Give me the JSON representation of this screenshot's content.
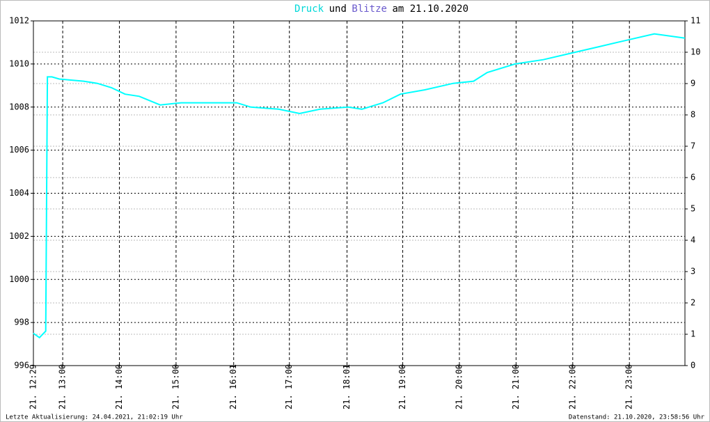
{
  "chart_data": {
    "type": "line",
    "title_parts": [
      {
        "text": "Druck",
        "color": "#00d8d8"
      },
      {
        "text": "und",
        "color": "#000000"
      },
      {
        "text": "Blitze",
        "color": "#6a5acd"
      },
      {
        "text": "am 21.10.2020",
        "color": "#000000"
      }
    ],
    "x": [
      12.48,
      12.59,
      12.7,
      12.73,
      12.81,
      12.94,
      13.37,
      13.61,
      13.86,
      14.1,
      14.35,
      14.72,
      15.09,
      15.58,
      16.07,
      16.32,
      16.81,
      17.18,
      17.54,
      18.04,
      18.28,
      18.65,
      18.96,
      19.39,
      19.89,
      20.25,
      20.49,
      20.98,
      21.48,
      21.97,
      22.46,
      22.95,
      23.44,
      23.98
    ],
    "series": [
      {
        "name": "Druck",
        "color": "#00ffff",
        "values": [
          997.5,
          997.3,
          997.6,
          1009.4,
          1009.4,
          1009.3,
          1009.2,
          1009.1,
          1008.9,
          1008.6,
          1008.5,
          1008.1,
          1008.2,
          1008.2,
          1008.2,
          1008.0,
          1007.9,
          1007.7,
          1007.9,
          1008.0,
          1007.9,
          1008.2,
          1008.6,
          1008.8,
          1009.1,
          1009.2,
          1009.6,
          1010.0,
          1010.2,
          1010.5,
          1010.8,
          1011.1,
          1011.4,
          1011.2
        ]
      }
    ],
    "xlim": [
      12.483,
      23.98
    ],
    "xticks": [
      {
        "value": 12.483,
        "label": "21. 12:29"
      },
      {
        "value": 13,
        "label": "21. 13:00"
      },
      {
        "value": 14,
        "label": "21. 14:00"
      },
      {
        "value": 15,
        "label": "21. 15:00"
      },
      {
        "value": 16.017,
        "label": "21. 16:01"
      },
      {
        "value": 17,
        "label": "21. 17:00"
      },
      {
        "value": 18.017,
        "label": "21. 18:01"
      },
      {
        "value": 19,
        "label": "21. 19:00"
      },
      {
        "value": 20,
        "label": "21. 20:00"
      },
      {
        "value": 21,
        "label": "21. 21:00"
      },
      {
        "value": 22,
        "label": "21. 22:00"
      },
      {
        "value": 23,
        "label": "21. 23:00"
      }
    ],
    "ylim": [
      996,
      1012
    ],
    "yticks": [
      996,
      998,
      1000,
      1002,
      1004,
      1006,
      1008,
      1010,
      1012
    ],
    "y2lim": [
      0,
      11
    ],
    "y2ticks": [
      0,
      1,
      2,
      3,
      4,
      5,
      6,
      7,
      8,
      9,
      10,
      11
    ],
    "grid": true,
    "footer_left": "Letzte Aktualisierung: 24.04.2021, 21:02:19 Uhr",
    "footer_right": "Datenstand: 21.10.2020, 23:58:56 Uhr"
  }
}
